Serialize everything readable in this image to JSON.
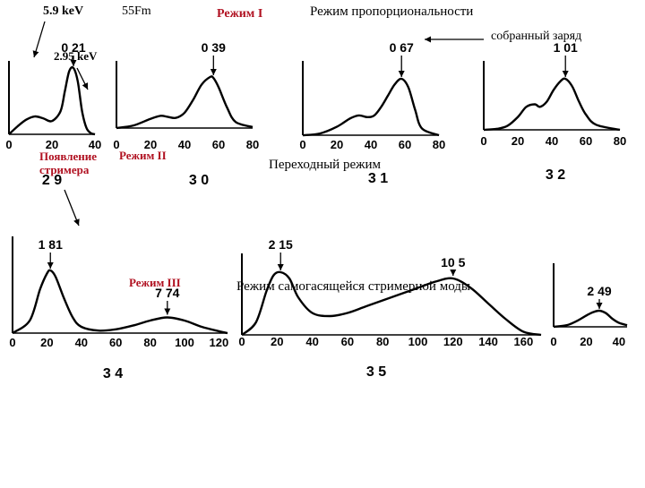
{
  "annotations": {
    "energy_main": "5.9 keV",
    "source": "55Fm",
    "energy_escape": "2.95 keV",
    "mode_1": "Режим I",
    "proportional": "Режим пропорциональности",
    "collected_charge": "собранный заряд",
    "streamer_onset_line1": "Появление",
    "streamer_onset_line2": "стримера",
    "mode_2": "Режим II",
    "transition": "Переходный режим",
    "mode_3": "Режим III",
    "self_quenching": "Режим самогасящейся стримерной моды"
  },
  "colors": {
    "ink": "#000000",
    "red": "#b01020"
  },
  "chart_data": [
    {
      "type": "line",
      "figure_label": "2 9",
      "peak_label": "0 21",
      "peak_x": 30,
      "xlim": [
        0,
        40
      ],
      "xticks": [
        "0",
        "20",
        "40"
      ],
      "x": [
        0,
        4,
        8,
        12,
        16,
        20,
        24,
        26,
        28,
        30,
        32,
        34,
        36,
        38,
        40
      ],
      "y": [
        0.0,
        0.12,
        0.22,
        0.27,
        0.24,
        0.2,
        0.35,
        0.65,
        0.95,
        1.0,
        0.8,
        0.35,
        0.1,
        0.02,
        0.0
      ]
    },
    {
      "type": "line",
      "figure_label": "3 0",
      "peak_label": "0 39",
      "peak_x": 57,
      "xlim": [
        0,
        80
      ],
      "xticks": [
        "0",
        "20",
        "40",
        "60",
        "80"
      ],
      "x": [
        0,
        10,
        20,
        26,
        30,
        35,
        40,
        45,
        50,
        55,
        57,
        60,
        65,
        70,
        80
      ],
      "y": [
        0.0,
        0.05,
        0.18,
        0.24,
        0.22,
        0.2,
        0.3,
        0.55,
        0.85,
        1.0,
        0.98,
        0.8,
        0.4,
        0.12,
        0.02
      ]
    },
    {
      "type": "line",
      "figure_label": "3 1",
      "peak_label": "0 67",
      "peak_x": 58,
      "xlim": [
        0,
        80
      ],
      "xticks": [
        "0",
        "20",
        "40",
        "60",
        "80"
      ],
      "x": [
        0,
        10,
        20,
        28,
        33,
        38,
        42,
        46,
        50,
        54,
        58,
        62,
        66,
        70,
        80
      ],
      "y": [
        0.0,
        0.03,
        0.15,
        0.3,
        0.35,
        0.32,
        0.35,
        0.5,
        0.7,
        0.9,
        1.0,
        0.85,
        0.45,
        0.12,
        0.0
      ]
    },
    {
      "type": "line",
      "figure_label": "3 2",
      "peak_label": "1 01",
      "peak_x": 48,
      "xlim": [
        0,
        80
      ],
      "xticks": [
        "0",
        "20",
        "40",
        "60",
        "80"
      ],
      "x": [
        0,
        8,
        14,
        20,
        25,
        30,
        33,
        37,
        41,
        45,
        48,
        52,
        56,
        60,
        66,
        80
      ],
      "y": [
        0.0,
        0.02,
        0.08,
        0.25,
        0.45,
        0.5,
        0.45,
        0.55,
        0.78,
        0.95,
        1.0,
        0.85,
        0.55,
        0.3,
        0.1,
        0.0
      ]
    },
    {
      "type": "line",
      "figure_label": "3 4",
      "peak_label": "1 81",
      "second_peak_label": "7 74",
      "peak_x": 22,
      "second_peak_x": 90,
      "xlim": [
        0,
        125
      ],
      "xticks": [
        "0",
        "20",
        "40",
        "60",
        "80",
        "100",
        "120"
      ],
      "x": [
        0,
        10,
        16,
        20,
        22,
        25,
        30,
        35,
        40,
        50,
        60,
        70,
        80,
        90,
        100,
        110,
        120,
        125
      ],
      "y": [
        0.0,
        0.2,
        0.7,
        0.95,
        1.0,
        0.9,
        0.55,
        0.25,
        0.1,
        0.04,
        0.06,
        0.12,
        0.2,
        0.25,
        0.2,
        0.1,
        0.03,
        0.0
      ]
    },
    {
      "type": "line",
      "figure_label": "3 5",
      "peak_label": "2 15",
      "second_peak_label": "10 5",
      "peak_x": 22,
      "second_peak_x": 120,
      "xlim": [
        0,
        170
      ],
      "xticks": [
        "0",
        "20",
        "40",
        "60",
        "80",
        "100",
        "120",
        "140",
        "160"
      ],
      "x": [
        0,
        8,
        14,
        18,
        22,
        27,
        32,
        40,
        50,
        60,
        70,
        80,
        90,
        100,
        110,
        120,
        130,
        140,
        150,
        160,
        170
      ],
      "y": [
        0.0,
        0.2,
        0.7,
        0.95,
        1.0,
        0.9,
        0.6,
        0.35,
        0.3,
        0.35,
        0.45,
        0.55,
        0.65,
        0.75,
        0.85,
        0.9,
        0.75,
        0.5,
        0.25,
        0.05,
        0.0
      ]
    },
    {
      "type": "line",
      "figure_label": "",
      "peak_label": "2 49",
      "peak_x": 28,
      "xlim": [
        0,
        45
      ],
      "xticks": [
        "0",
        "20",
        "40"
      ],
      "x": [
        0,
        8,
        14,
        20,
        24,
        28,
        32,
        36,
        40,
        45
      ],
      "y": [
        0.0,
        0.1,
        0.35,
        0.7,
        0.9,
        1.0,
        0.85,
        0.5,
        0.25,
        0.1
      ]
    }
  ]
}
